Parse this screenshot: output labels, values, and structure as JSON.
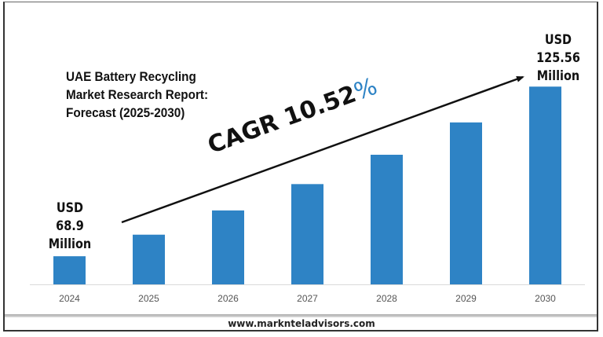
{
  "chart_data": {
    "type": "bar",
    "title": "UAE Battery Recycling Market Research Report: Forecast (2025-2030)",
    "categories": [
      "2024",
      "2025",
      "2026",
      "2027",
      "2028",
      "2029",
      "2030"
    ],
    "values": [
      68.9,
      76.1,
      84.2,
      93.0,
      102.8,
      113.6,
      125.56
    ],
    "ylim": [
      59.5,
      144
    ],
    "xlabel": "",
    "ylabel": "",
    "grid": false,
    "bar_color": "#2e83c5",
    "annotations": {
      "start": {
        "line1": "USD",
        "line2": "68.9",
        "line3": "Million"
      },
      "end": {
        "line1": "USD",
        "line2": "125.56",
        "line3": "Million"
      },
      "cagr_text": "CAGR 10.52",
      "cagr_pct": "%",
      "cagr_color": "#2e83c5"
    }
  },
  "title_lines": [
    "UAE Battery Recycling",
    "Market Research Report:",
    "Forecast (2025-2030)"
  ],
  "footer": "www.marknteladvisors.com"
}
